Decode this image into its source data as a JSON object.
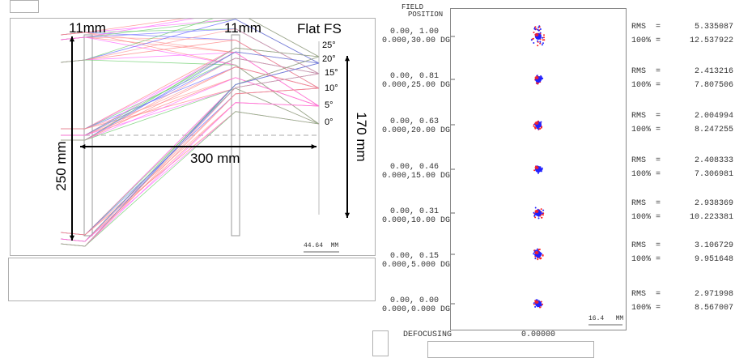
{
  "ray_diagram": {
    "lens_labels": [
      "11mm",
      "11mm"
    ],
    "field_stop_label": "Flat FS",
    "angle_labels": [
      "25°",
      "20°",
      "15°",
      "10°",
      "5°",
      "0°"
    ],
    "height_label": "250 mm",
    "length_label": "300 mm",
    "fs_height_label": "170 mm",
    "scale_label": "44.64  MM",
    "ray_colors": [
      "#ff8080",
      "#ff66ff",
      "#66cc66",
      "#6666ff",
      "#ff9999"
    ]
  },
  "spot_diagram": {
    "header_line1": "FIELD",
    "header_line2": "POSITION",
    "fields": [
      {
        "pos": "0.00, 1.00",
        "deg": "0.000,30.00 DG",
        "rms_label": "RMS  =",
        "rms": "5.335087",
        "pct_label": "100% =",
        "pct": "12.537922"
      },
      {
        "pos": "0.00, 0.81",
        "deg": "0.000,25.00 DG",
        "rms_label": "RMS  =",
        "rms": "2.413216",
        "pct_label": "100% =",
        "pct": "7.807506"
      },
      {
        "pos": "0.00, 0.63",
        "deg": "0.000,20.00 DG",
        "rms_label": "RMS  =",
        "rms": "2.004994",
        "pct_label": "100% =",
        "pct": "8.247255"
      },
      {
        "pos": "0.00, 0.46",
        "deg": "0.000,15.00 DG",
        "rms_label": "RMS  =",
        "rms": "2.408333",
        "pct_label": "100% =",
        "pct": "7.306981"
      },
      {
        "pos": "0.00, 0.31",
        "deg": "0.000,10.00 DG",
        "rms_label": "RMS  =",
        "rms": "2.938369",
        "pct_label": "100% =",
        "pct": "10.223381"
      },
      {
        "pos": "0.00, 0.15",
        "deg": "0.000,5.000 DG",
        "rms_label": "RMS  =",
        "rms": "3.106729",
        "pct_label": "100% =",
        "pct": "9.951648"
      },
      {
        "pos": "0.00, 0.00",
        "deg": "0.000,0.000 DG",
        "rms_label": "RMS  =",
        "rms": "2.971998",
        "pct_label": "100% =",
        "pct": "8.567007"
      }
    ],
    "scale_label": "16.4   MM",
    "defocus_label": "DEFOCUSING",
    "defocus_value": "0.00000",
    "spot_colors": {
      "red": "#ff2020",
      "blue": "#2020ff"
    }
  }
}
